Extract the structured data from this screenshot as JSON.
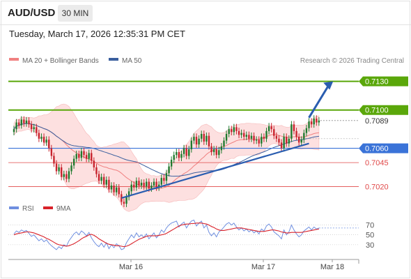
{
  "header": {
    "pair": "AUD/USD",
    "timeframe": "30 MIN",
    "datetime": "Tuesday, March 17, 2026 12:35:31 PM CET"
  },
  "legend": {
    "ma20": "MA 20 + Bollinger Bands",
    "ma50": "MA 50",
    "credit": "Research © 2026 Trading Central",
    "rsi": "RSI",
    "ma9": "9MA"
  },
  "colors": {
    "ma20": "#f08080",
    "ma50": "#3a5f9e",
    "green_level": "#5aa70a",
    "blue_level": "#3a73d8",
    "red_level": "#e04848",
    "candle_up": "#1f7a2e",
    "candle_down": "#c8242e",
    "bb_fill": "#fde0e0",
    "rsi_line": "#6f8fe0",
    "rsi_ma": "#d9222a",
    "arrow": "#2a5db0"
  },
  "chart_data": [
    {
      "type": "candlestick",
      "title": "AUD/USD 30 MIN",
      "x_ticks": [
        "Mar 16",
        "Mar 17",
        "Mar 18"
      ],
      "ylim": [
        0.7005,
        0.7145
      ],
      "current_price": 0.7089,
      "levels": [
        {
          "value": 0.713,
          "label": "0.7130",
          "kind": "target"
        },
        {
          "value": 0.71,
          "label": "0.7100",
          "kind": "resistance"
        },
        {
          "value": 0.706,
          "label": "0.7060",
          "kind": "pivot"
        },
        {
          "value": 0.7045,
          "label": "0.7045",
          "kind": "support"
        },
        {
          "value": 0.702,
          "label": "0.7020",
          "kind": "support"
        }
      ],
      "closes": [
        0.708,
        0.7087,
        0.7084,
        0.709,
        0.7086,
        0.7089,
        0.7085,
        0.708,
        0.7082,
        0.7076,
        0.707,
        0.7072,
        0.7066,
        0.7069,
        0.706,
        0.7052,
        0.7044,
        0.7036,
        0.704,
        0.703,
        0.7033,
        0.7028,
        0.7036,
        0.7042,
        0.7049,
        0.7054,
        0.705,
        0.7057,
        0.7053,
        0.7049,
        0.7055,
        0.7047,
        0.704,
        0.7033,
        0.7026,
        0.703,
        0.7022,
        0.7027,
        0.7017,
        0.7021,
        0.7014,
        0.7019,
        0.7012,
        0.7004,
        0.7002,
        0.7009,
        0.7015,
        0.7022,
        0.7019,
        0.7026,
        0.7021,
        0.7024,
        0.702,
        0.7025,
        0.7018,
        0.7021,
        0.7025,
        0.7019,
        0.7022,
        0.7029,
        0.7026,
        0.7034,
        0.7041,
        0.7048,
        0.7053,
        0.7056,
        0.705,
        0.7054,
        0.706,
        0.7052,
        0.7059,
        0.7068,
        0.7072,
        0.7064,
        0.707,
        0.7075,
        0.7067,
        0.7073,
        0.7062,
        0.7056,
        0.7059,
        0.7053,
        0.7058,
        0.7062,
        0.7068,
        0.7075,
        0.708,
        0.7077,
        0.7082,
        0.7078,
        0.7074,
        0.7076,
        0.7072,
        0.7074,
        0.707,
        0.7073,
        0.7068,
        0.7069,
        0.7065,
        0.7072,
        0.707,
        0.7078,
        0.7083,
        0.708,
        0.7073,
        0.707,
        0.7066,
        0.706,
        0.7072,
        0.7065,
        0.707,
        0.7085,
        0.7078,
        0.7072,
        0.7066,
        0.7069,
        0.7076,
        0.7081,
        0.7088,
        0.7085,
        0.7091,
        0.7087,
        0.7089
      ],
      "trendline": [
        [
          43,
          0.7008
        ],
        [
          118,
          0.7065
        ]
      ],
      "projection": [
        [
          118,
          0.7092
        ],
        [
          126,
          0.713
        ]
      ]
    },
    {
      "type": "line",
      "title": "RSI",
      "levels": [
        70,
        50,
        30
      ],
      "ylim": [
        10,
        85
      ],
      "series": [
        {
          "name": "RSI",
          "values": [
            52,
            58,
            55,
            60,
            57,
            59,
            53,
            47,
            50,
            44,
            38,
            42,
            36,
            40,
            33,
            28,
            24,
            20,
            26,
            22,
            30,
            27,
            38,
            45,
            52,
            56,
            50,
            58,
            54,
            48,
            55,
            44,
            36,
            30,
            26,
            33,
            25,
            34,
            22,
            30,
            24,
            32,
            28,
            20,
            22,
            34,
            42,
            50,
            44,
            54,
            46,
            50,
            45,
            52,
            42,
            48,
            54,
            44,
            50,
            60,
            55,
            64,
            70,
            74,
            76,
            78,
            66,
            72,
            76,
            64,
            72,
            78,
            80,
            68,
            74,
            78,
            64,
            70,
            55,
            48,
            54,
            46,
            56,
            60,
            66,
            72,
            75,
            70,
            74,
            66,
            60,
            64,
            58,
            62,
            56,
            60,
            54,
            58,
            52,
            62,
            58,
            68,
            72,
            66,
            56,
            52,
            48,
            42,
            60,
            50,
            56,
            70,
            60,
            52,
            46,
            50,
            58,
            62,
            66,
            60,
            66,
            62,
            64
          ]
        },
        {
          "name": "9MA",
          "values": [
            50,
            52,
            53,
            54,
            55,
            56,
            56,
            55,
            54,
            52,
            50,
            48,
            46,
            43,
            41,
            38,
            35,
            32,
            30,
            29,
            28,
            27,
            28,
            30,
            32,
            35,
            38,
            42,
            45,
            47,
            50,
            51,
            49,
            46,
            42,
            39,
            36,
            33,
            31,
            30,
            29,
            28,
            28,
            27,
            26,
            27,
            29,
            32,
            35,
            38,
            41,
            43,
            45,
            47,
            48,
            48,
            48,
            48,
            49,
            50,
            51,
            53,
            56,
            59,
            62,
            65,
            68,
            70,
            71,
            72,
            72,
            73,
            73,
            74,
            74,
            74,
            73,
            72,
            70,
            67,
            65,
            62,
            60,
            59,
            59,
            60,
            61,
            62,
            63,
            64,
            64,
            64,
            63,
            62,
            61,
            60,
            59,
            58,
            57,
            57,
            57,
            58,
            59,
            60,
            60,
            59,
            58,
            56,
            55,
            54,
            54,
            55,
            55,
            55,
            55,
            55,
            56,
            57,
            58,
            59,
            60,
            61,
            62
          ]
        }
      ]
    }
  ]
}
